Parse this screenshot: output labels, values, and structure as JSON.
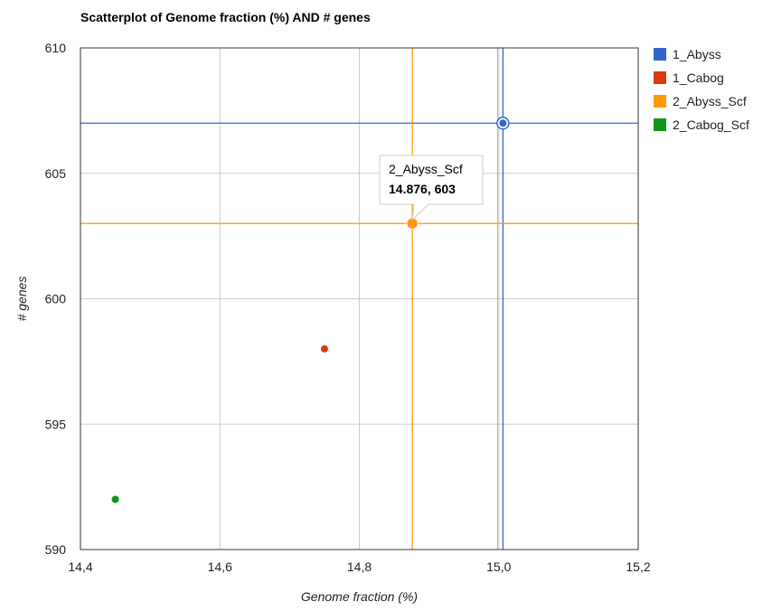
{
  "chart_data": {
    "type": "scatter",
    "title": "Scatterplot of Genome fraction (%) AND # genes",
    "xlabel": "Genome fraction (%)",
    "ylabel": "# genes",
    "xlim": [
      14.4,
      15.2
    ],
    "ylim": [
      590,
      610
    ],
    "x_ticks": [
      "14,4",
      "14,6",
      "14,8",
      "15,0",
      "15,2"
    ],
    "x_tick_values": [
      14.4,
      14.6,
      14.8,
      15.0,
      15.2
    ],
    "y_ticks": [
      "610",
      "605",
      "600",
      "595",
      "590"
    ],
    "y_tick_values": [
      610,
      605,
      600,
      595,
      590
    ],
    "grid": true,
    "legend_position": "right",
    "series": [
      {
        "name": "1_Abyss",
        "color": "#3366cc",
        "x": 15.006,
        "y": 607,
        "focused": true
      },
      {
        "name": "1_Cabog",
        "color": "#dc3912",
        "x": 14.75,
        "y": 598
      },
      {
        "name": "2_Abyss_Scf",
        "color": "#ff9900",
        "x": 14.876,
        "y": 603,
        "crosshair": true
      },
      {
        "name": "2_Cabog_Scf",
        "color": "#109618",
        "x": 14.45,
        "y": 592
      }
    ],
    "tooltip": {
      "series": "2_Abyss_Scf",
      "name": "2_Abyss_Scf",
      "value": "14.876, 603"
    }
  }
}
